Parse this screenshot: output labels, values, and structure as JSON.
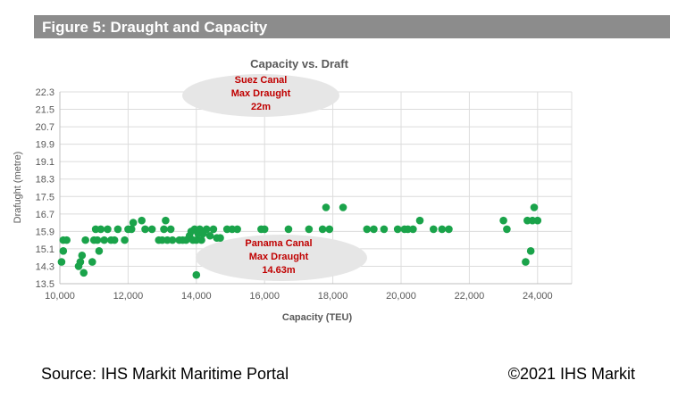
{
  "figure_title": "Figure 5: Draught and Capacity",
  "colors": {
    "banner": "#8c8c8c",
    "points": "#1aa34a",
    "annotation_text": "#c00000",
    "annotation_fill": "#e6e6e6",
    "grid": "#dcdcdc"
  },
  "chart_data": {
    "type": "scatter",
    "title": "Capacity vs. Draft",
    "xlabel": "Capacity (TEU)",
    "ylabel": "Drafught (metre)",
    "xlim": [
      10000,
      25000
    ],
    "ylim": [
      13.5,
      22.3
    ],
    "xticks": [
      "10,000",
      "12,000",
      "14,000",
      "16,000",
      "18,000",
      "20,000",
      "22,000",
      "24,000"
    ],
    "xtick_values": [
      10000,
      12000,
      14000,
      16000,
      18000,
      20000,
      22000,
      24000
    ],
    "yticks": [
      "22.3",
      "21.5",
      "20.7",
      "19.9",
      "19.1",
      "18.3",
      "17.5",
      "16.7",
      "15.9",
      "15.1",
      "14.3",
      "13.5"
    ],
    "ytick_values": [
      22.3,
      21.5,
      20.7,
      19.9,
      19.1,
      18.3,
      17.5,
      16.7,
      15.9,
      15.1,
      14.3,
      13.5
    ],
    "grid": true,
    "points": [
      [
        10050,
        14.5
      ],
      [
        10100,
        15.0
      ],
      [
        10100,
        15.5
      ],
      [
        10200,
        15.5
      ],
      [
        10550,
        14.3
      ],
      [
        10600,
        14.5
      ],
      [
        10650,
        14.8
      ],
      [
        10700,
        14.0
      ],
      [
        10750,
        15.5
      ],
      [
        10950,
        14.5
      ],
      [
        11000,
        15.5
      ],
      [
        11050,
        16.0
      ],
      [
        11100,
        15.5
      ],
      [
        11150,
        15.0
      ],
      [
        11200,
        16.0
      ],
      [
        11300,
        15.5
      ],
      [
        11400,
        16.0
      ],
      [
        11500,
        15.5
      ],
      [
        11600,
        15.5
      ],
      [
        11700,
        16.0
      ],
      [
        11900,
        15.5
      ],
      [
        12000,
        16.0
      ],
      [
        12100,
        16.0
      ],
      [
        12150,
        16.3
      ],
      [
        12400,
        16.4
      ],
      [
        12500,
        16.0
      ],
      [
        12700,
        16.0
      ],
      [
        12900,
        15.5
      ],
      [
        13000,
        15.5
      ],
      [
        13050,
        16.0
      ],
      [
        13100,
        16.4
      ],
      [
        13150,
        15.5
      ],
      [
        13250,
        16.0
      ],
      [
        13300,
        15.5
      ],
      [
        13500,
        15.5
      ],
      [
        13600,
        15.5
      ],
      [
        13700,
        15.5
      ],
      [
        13800,
        15.7
      ],
      [
        13850,
        15.9
      ],
      [
        13900,
        15.5
      ],
      [
        13950,
        16.0
      ],
      [
        14000,
        15.5
      ],
      [
        14000,
        13.9
      ],
      [
        14050,
        15.8
      ],
      [
        14100,
        16.0
      ],
      [
        14150,
        15.5
      ],
      [
        14200,
        15.8
      ],
      [
        14300,
        16.0
      ],
      [
        14400,
        15.7
      ],
      [
        14500,
        16.0
      ],
      [
        14600,
        15.6
      ],
      [
        14700,
        15.6
      ],
      [
        14900,
        16.0
      ],
      [
        15050,
        16.0
      ],
      [
        15200,
        16.0
      ],
      [
        15900,
        16.0
      ],
      [
        16000,
        16.0
      ],
      [
        16700,
        16.0
      ],
      [
        17300,
        16.0
      ],
      [
        17700,
        16.0
      ],
      [
        17800,
        17.0
      ],
      [
        17900,
        16.0
      ],
      [
        18300,
        17.0
      ],
      [
        19000,
        16.0
      ],
      [
        19200,
        16.0
      ],
      [
        19500,
        16.0
      ],
      [
        19900,
        16.0
      ],
      [
        20100,
        16.0
      ],
      [
        20200,
        16.0
      ],
      [
        20350,
        16.0
      ],
      [
        20550,
        16.4
      ],
      [
        20950,
        16.0
      ],
      [
        21200,
        16.0
      ],
      [
        21400,
        16.0
      ],
      [
        23000,
        16.4
      ],
      [
        23100,
        16.0
      ],
      [
        23650,
        14.5
      ],
      [
        23700,
        16.4
      ],
      [
        23800,
        15.0
      ],
      [
        23850,
        16.4
      ],
      [
        23900,
        17.0
      ],
      [
        24000,
        16.4
      ]
    ],
    "annotations": [
      {
        "lines": [
          "Suez Canal",
          "Max Draught",
          "22m"
        ]
      },
      {
        "lines": [
          "Panama Canal",
          "Max Draught",
          "14.63m"
        ]
      }
    ]
  },
  "footer": {
    "source": "Source: IHS Markit Maritime Portal",
    "copyright": "©2021 IHS Markit"
  }
}
